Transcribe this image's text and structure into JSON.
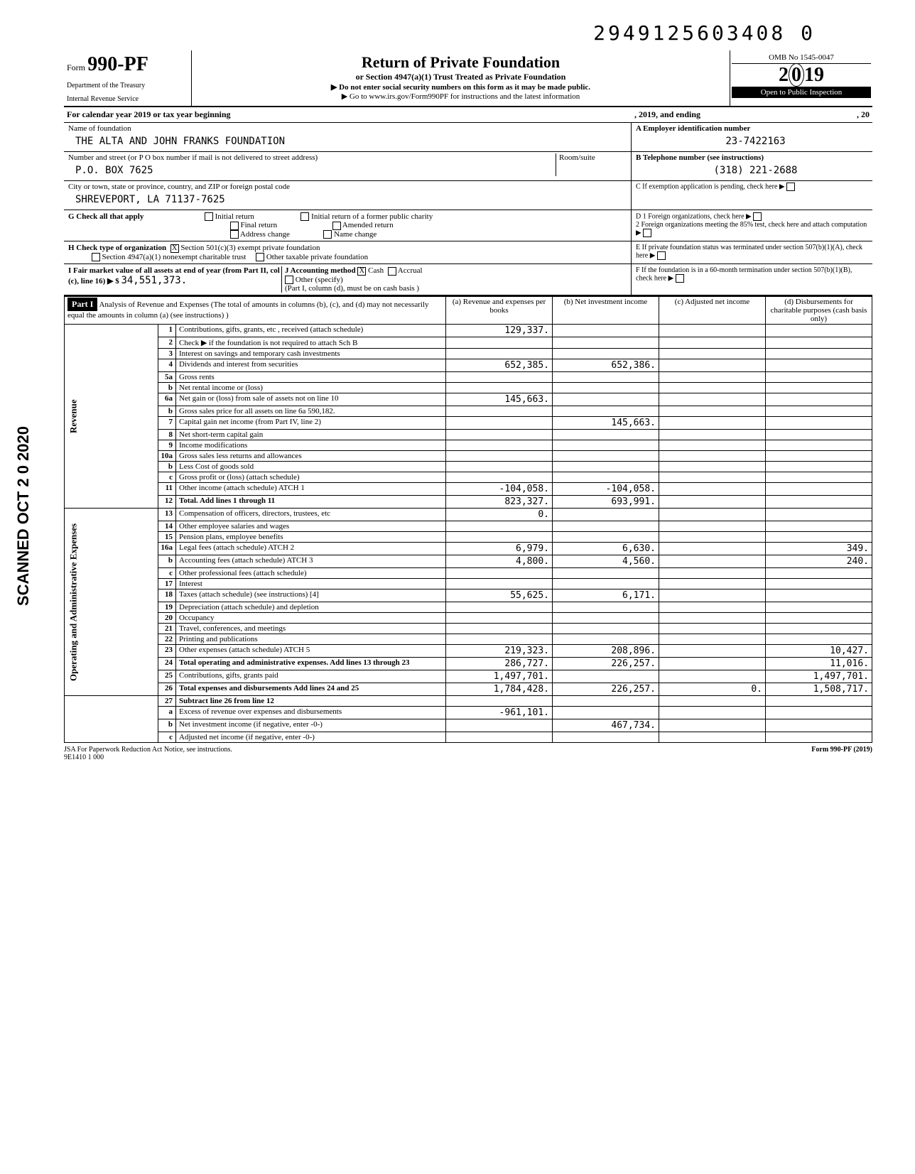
{
  "top_id": "2949125603408  0",
  "form": {
    "prefix": "Form",
    "number": "990-PF",
    "dept1": "Department of the Treasury",
    "dept2": "Internal Revenue Service"
  },
  "header": {
    "title": "Return of Private Foundation",
    "sub": "or Section 4947(a)(1) Trust Treated as Private Foundation",
    "note1": "▶ Do not enter social security numbers on this form as it may be made public.",
    "note2": "▶ Go to www.irs.gov/Form990PF for instructions and the latest information",
    "omb": "OMB No 1545-0047",
    "year": "2019",
    "open": "Open to Public Inspection"
  },
  "calendar": {
    "label": "For calendar year 2019 or tax year beginning",
    "mid": ", 2019, and ending",
    "end": ", 20"
  },
  "foundation": {
    "name_label": "Name of foundation",
    "name": "THE ALTA AND JOHN FRANKS FOUNDATION",
    "street_label": "Number and street (or P O  box number if mail is not delivered to street address)",
    "street": "P.O. BOX 7625",
    "room_label": "Room/suite",
    "city_label": "City or town, state or province, country, and ZIP or foreign postal code",
    "city": "SHREVEPORT, LA 71137-7625",
    "ein_label": "A  Employer identification number",
    "ein": "23-7422163",
    "phone_label": "B  Telephone number (see instructions)",
    "phone": "(318) 221-2688",
    "c_label": "C  If exemption application is pending, check here"
  },
  "g_check": {
    "label": "G  Check all that apply",
    "opts": [
      "Initial return",
      "Final return",
      "Address change",
      "Initial return of a former public charity",
      "Amended return",
      "Name change"
    ]
  },
  "d_check": {
    "d1": "D 1  Foreign organizations, check here",
    "d2": "2  Foreign organizations meeting the 85% test, check here and attach computation"
  },
  "h_check": {
    "label": "H  Check type of organization",
    "opts": [
      "Section 501(c)(3) exempt private foundation",
      "Section 4947(a)(1) nonexempt charitable trust",
      "Other taxable private foundation"
    ],
    "marked": "X"
  },
  "e_check": {
    "e": "E  If private foundation status was terminated under section 507(b)(1)(A), check here"
  },
  "i_check": {
    "label": "I  Fair market value of all assets at end of year (from Part II, col (c), line 16) ▶ $",
    "value": "34,551,373.",
    "j_label": "J Accounting method",
    "cash": "Cash",
    "accrual": "Accrual",
    "other": "Other (specify)",
    "note": "(Part I, column (d), must be on cash basis )",
    "marked": "X"
  },
  "f_check": {
    "f": "F  If the foundation is in a 60-month termination under section 507(b)(1)(B), check here"
  },
  "part1": {
    "title": "Part I",
    "desc": "Analysis of Revenue and Expenses (The total of amounts in columns (b), (c), and (d) may not necessarily equal the amounts in column (a) (see instructions) )",
    "cols": {
      "a": "(a) Revenue and expenses per books",
      "b": "(b) Net investment income",
      "c": "(c) Adjusted net income",
      "d": "(d) Disbursements for charitable purposes (cash basis only)"
    }
  },
  "sections": {
    "revenue": "Revenue",
    "operating": "Operating and Administrative Expenses"
  },
  "rows": [
    {
      "n": "1",
      "d": "Contributions, gifts, grants, etc , received (attach schedule)",
      "a": "129,337.",
      "b": "",
      "c": "",
      "dd": ""
    },
    {
      "n": "2",
      "d": "Check ▶     if the foundation is not required to attach Sch B",
      "a": "",
      "b": "",
      "c": "",
      "dd": ""
    },
    {
      "n": "3",
      "d": "Interest on savings and temporary cash investments",
      "a": "",
      "b": "",
      "c": "",
      "dd": ""
    },
    {
      "n": "4",
      "d": "Dividends and interest from securities",
      "a": "652,385.",
      "b": "652,386.",
      "c": "",
      "dd": ""
    },
    {
      "n": "5a",
      "d": "Gross rents",
      "a": "",
      "b": "",
      "c": "",
      "dd": ""
    },
    {
      "n": "b",
      "d": "Net rental income or (loss)",
      "a": "",
      "b": "",
      "c": "",
      "dd": ""
    },
    {
      "n": "6a",
      "d": "Net gain or (loss) from sale of assets not on line 10",
      "a": "145,663.",
      "b": "",
      "c": "",
      "dd": ""
    },
    {
      "n": "b",
      "d": "Gross sales price for all assets on line 6a     590,182.",
      "a": "",
      "b": "",
      "c": "",
      "dd": ""
    },
    {
      "n": "7",
      "d": "Capital gain net income (from Part IV, line 2)",
      "a": "",
      "b": "145,663.",
      "c": "",
      "dd": ""
    },
    {
      "n": "8",
      "d": "Net short-term capital gain",
      "a": "",
      "b": "",
      "c": "",
      "dd": ""
    },
    {
      "n": "9",
      "d": "Income modifications",
      "a": "",
      "b": "",
      "c": "",
      "dd": ""
    },
    {
      "n": "10a",
      "d": "Gross sales less returns and allowances",
      "a": "",
      "b": "",
      "c": "",
      "dd": ""
    },
    {
      "n": "b",
      "d": "Less Cost of goods sold",
      "a": "",
      "b": "",
      "c": "",
      "dd": ""
    },
    {
      "n": "c",
      "d": "Gross profit or (loss) (attach schedule)",
      "a": "",
      "b": "",
      "c": "",
      "dd": ""
    },
    {
      "n": "11",
      "d": "Other income (attach schedule) ATCH 1",
      "a": "-104,058.",
      "b": "-104,058.",
      "c": "",
      "dd": ""
    },
    {
      "n": "12",
      "d": "Total. Add lines 1 through 11",
      "a": "823,327.",
      "b": "693,991.",
      "c": "",
      "dd": ""
    },
    {
      "n": "13",
      "d": "Compensation of officers, directors, trustees, etc",
      "a": "0.",
      "b": "",
      "c": "",
      "dd": ""
    },
    {
      "n": "14",
      "d": "Other employee salaries and wages",
      "a": "",
      "b": "",
      "c": "",
      "dd": ""
    },
    {
      "n": "15",
      "d": "Pension plans, employee benefits",
      "a": "",
      "b": "",
      "c": "",
      "dd": ""
    },
    {
      "n": "16a",
      "d": "Legal fees (attach schedule) ATCH 2",
      "a": "6,979.",
      "b": "6,630.",
      "c": "",
      "dd": "349."
    },
    {
      "n": "b",
      "d": "Accounting fees (attach schedule) ATCH 3",
      "a": "4,800.",
      "b": "4,560.",
      "c": "",
      "dd": "240."
    },
    {
      "n": "c",
      "d": "Other professional fees (attach schedule)",
      "a": "",
      "b": "",
      "c": "",
      "dd": ""
    },
    {
      "n": "17",
      "d": "Interest",
      "a": "",
      "b": "",
      "c": "",
      "dd": ""
    },
    {
      "n": "18",
      "d": "Taxes (attach schedule) (see instructions) [4]",
      "a": "55,625.",
      "b": "6,171.",
      "c": "",
      "dd": ""
    },
    {
      "n": "19",
      "d": "Depreciation (attach schedule) and depletion",
      "a": "",
      "b": "",
      "c": "",
      "dd": ""
    },
    {
      "n": "20",
      "d": "Occupancy",
      "a": "",
      "b": "",
      "c": "",
      "dd": ""
    },
    {
      "n": "21",
      "d": "Travel, conferences, and meetings",
      "a": "",
      "b": "",
      "c": "",
      "dd": ""
    },
    {
      "n": "22",
      "d": "Printing and publications",
      "a": "",
      "b": "",
      "c": "",
      "dd": ""
    },
    {
      "n": "23",
      "d": "Other expenses (attach schedule) ATCH 5",
      "a": "219,323.",
      "b": "208,896.",
      "c": "",
      "dd": "10,427."
    },
    {
      "n": "24",
      "d": "Total operating and administrative expenses. Add lines 13 through 23",
      "a": "286,727.",
      "b": "226,257.",
      "c": "",
      "dd": "11,016."
    },
    {
      "n": "25",
      "d": "Contributions, gifts, grants paid",
      "a": "1,497,701.",
      "b": "",
      "c": "",
      "dd": "1,497,701."
    },
    {
      "n": "26",
      "d": "Total expenses and disbursements  Add lines 24 and 25",
      "a": "1,784,428.",
      "b": "226,257.",
      "c": "0.",
      "dd": "1,508,717."
    },
    {
      "n": "27",
      "d": "Subtract line 26 from line 12",
      "a": "",
      "b": "",
      "c": "",
      "dd": ""
    },
    {
      "n": "a",
      "d": "Excess of revenue over expenses and disbursements",
      "a": "-961,101.",
      "b": "",
      "c": "",
      "dd": ""
    },
    {
      "n": "b",
      "d": "Net investment income (if negative, enter -0-)",
      "a": "",
      "b": "467,734.",
      "c": "",
      "dd": ""
    },
    {
      "n": "c",
      "d": "Adjusted net income (if negative, enter -0-)",
      "a": "",
      "b": "",
      "c": "",
      "dd": ""
    }
  ],
  "footer": {
    "left": "JSA  For Paperwork Reduction Act Notice, see instructions.",
    "code": "9E1410 1 000",
    "right": "Form 990-PF (2019)"
  },
  "side": {
    "scanned": "SCANNED OCT 2 0 2020"
  }
}
